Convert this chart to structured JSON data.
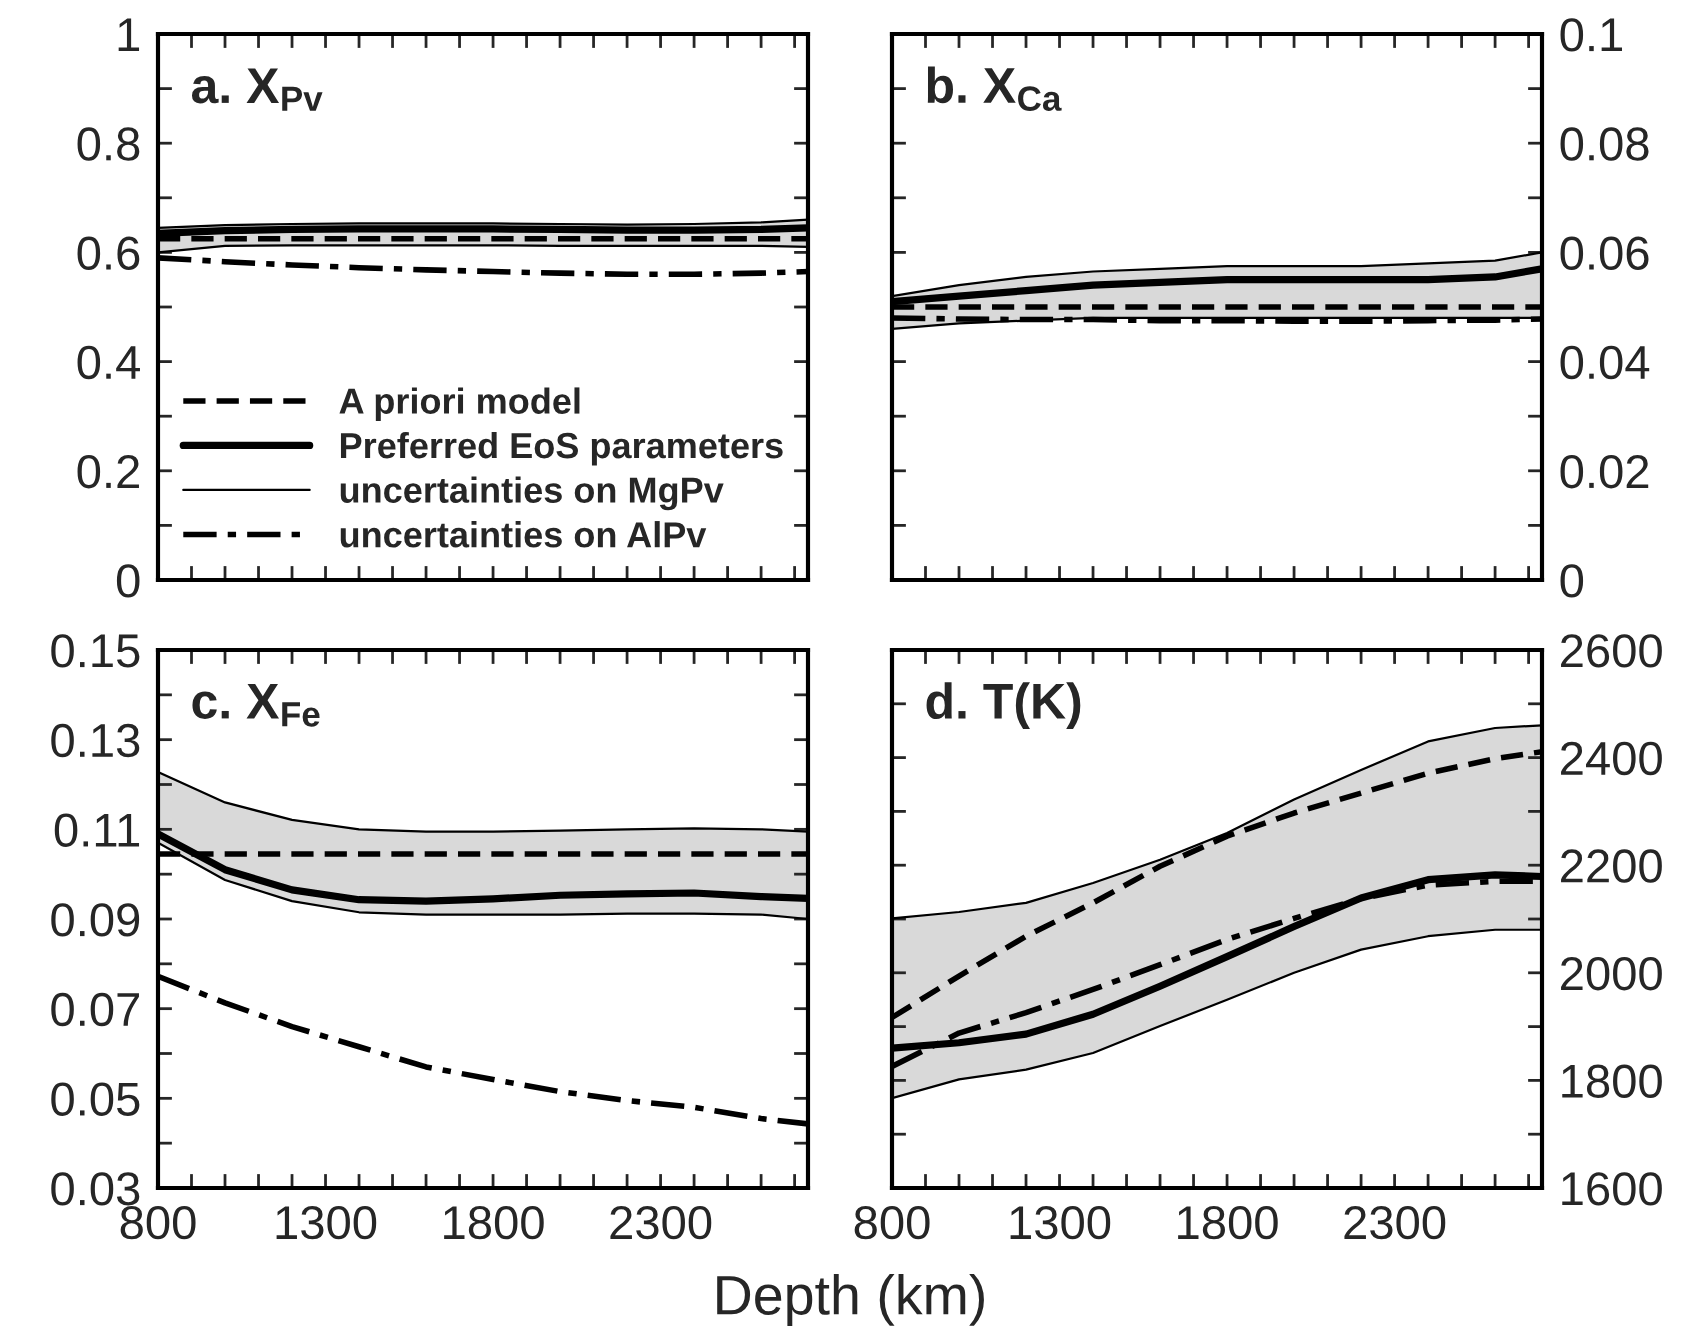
{
  "chart_data": [
    {
      "type": "line",
      "title": "a. X$_{Pv}$",
      "x": [
        800,
        1000,
        1200,
        1400,
        1600,
        1800,
        2000,
        2200,
        2400,
        2600,
        2740
      ],
      "xlim": [
        800,
        2740
      ],
      "xticks": [
        {
          "value": 800,
          "label": null
        },
        {
          "value": 900,
          "label": null
        },
        {
          "value": 1000,
          "label": null
        },
        {
          "value": 1100,
          "label": null
        },
        {
          "value": 1200,
          "label": null
        },
        {
          "value": 1300,
          "label": null
        },
        {
          "value": 1400,
          "label": null
        },
        {
          "value": 1500,
          "label": null
        },
        {
          "value": 1600,
          "label": null
        },
        {
          "value": 1700,
          "label": null
        },
        {
          "value": 1800,
          "label": null
        },
        {
          "value": 1900,
          "label": null
        },
        {
          "value": 2000,
          "label": null
        },
        {
          "value": 2100,
          "label": null
        },
        {
          "value": 2200,
          "label": null
        },
        {
          "value": 2300,
          "label": null
        },
        {
          "value": 2400,
          "label": null
        },
        {
          "value": 2500,
          "label": null
        },
        {
          "value": 2600,
          "label": null
        },
        {
          "value": 2700,
          "label": null
        }
      ],
      "ylim": [
        0,
        1
      ],
      "yticks": [
        0,
        {
          "value": 0.1,
          "label": null
        },
        0.2,
        {
          "value": 0.3,
          "label": null
        },
        0.4,
        {
          "value": 0.5,
          "label": null
        },
        0.6,
        {
          "value": 0.7,
          "label": null
        },
        0.8,
        {
          "value": 0.9,
          "label": null
        },
        1
      ],
      "tick_labels": "y",
      "grid": false,
      "legend": "bottom left",
      "series": [
        {
          "name": "A priori model",
          "color": "#000000",
          "line_style": "dashed",
          "values": [
            0.625,
            0.625,
            0.625,
            0.625,
            0.625,
            0.625,
            0.625,
            0.625,
            0.625,
            0.625,
            0.625
          ]
        },
        {
          "name": "Preferred EoS parameters",
          "color": "#000000",
          "line_style": "solid",
          "values": [
            0.635,
            0.64,
            0.642,
            0.643,
            0.643,
            0.643,
            0.642,
            0.641,
            0.641,
            0.642,
            0.645
          ],
          "lower": [
            0.6,
            0.612,
            0.613,
            0.613,
            0.613,
            0.613,
            0.612,
            0.612,
            0.612,
            0.612,
            0.61
          ],
          "upper": [
            0.645,
            0.65,
            0.652,
            0.653,
            0.653,
            0.653,
            0.652,
            0.651,
            0.652,
            0.655,
            0.66
          ]
        },
        {
          "name": "uncertainties on MgPv",
          "color": "#000000",
          "line_style": "solid",
          "values": [
            0.645,
            0.65,
            0.652,
            0.653,
            0.653,
            0.653,
            0.652,
            0.651,
            0.652,
            0.655,
            0.66
          ]
        },
        {
          "color": "#000000",
          "line_style": "solid",
          "values": [
            0.6,
            0.612,
            0.613,
            0.613,
            0.613,
            0.613,
            0.612,
            0.612,
            0.612,
            0.612,
            0.61
          ]
        },
        {
          "name": "uncertainties on AlPv",
          "color": "#000000",
          "line_style": "dashdot",
          "values": [
            0.59,
            0.583,
            0.577,
            0.572,
            0.568,
            0.565,
            0.562,
            0.56,
            0.56,
            0.562,
            0.565
          ]
        }
      ]
    },
    {
      "type": "line",
      "title": "b. X$_{Ca}$",
      "x": [
        800,
        1000,
        1200,
        1400,
        1600,
        1800,
        2000,
        2200,
        2400,
        2600,
        2740
      ],
      "xlim": [
        800,
        2740
      ],
      "xticks": [
        {
          "value": 800,
          "label": null
        },
        {
          "value": 900,
          "label": null
        },
        {
          "value": 1000,
          "label": null
        },
        {
          "value": 1100,
          "label": null
        },
        {
          "value": 1200,
          "label": null
        },
        {
          "value": 1300,
          "label": null
        },
        {
          "value": 1400,
          "label": null
        },
        {
          "value": 1500,
          "label": null
        },
        {
          "value": 1600,
          "label": null
        },
        {
          "value": 1700,
          "label": null
        },
        {
          "value": 1800,
          "label": null
        },
        {
          "value": 1900,
          "label": null
        },
        {
          "value": 2000,
          "label": null
        },
        {
          "value": 2100,
          "label": null
        },
        {
          "value": 2200,
          "label": null
        },
        {
          "value": 2300,
          "label": null
        },
        {
          "value": 2400,
          "label": null
        },
        {
          "value": 2500,
          "label": null
        },
        {
          "value": 2600,
          "label": null
        },
        {
          "value": 2700,
          "label": null
        }
      ],
      "y2lim": [
        0,
        0.1
      ],
      "y2ticks": [
        0,
        {
          "value": 0.01,
          "label": null
        },
        0.02,
        {
          "value": 0.03,
          "label": null
        },
        0.04,
        {
          "value": 0.05,
          "label": null
        },
        0.06,
        {
          "value": 0.07,
          "label": null
        },
        0.08,
        {
          "value": 0.09,
          "label": null
        },
        0.1
      ],
      "tick_labels": "y",
      "grid": false,
      "series": [
        {
          "color": "#000000",
          "axis": "y2",
          "line_style": "dashed",
          "values": [
            0.05,
            0.05,
            0.05,
            0.05,
            0.05,
            0.05,
            0.05,
            0.05,
            0.05,
            0.05,
            0.05
          ]
        },
        {
          "color": "#000000",
          "axis": "y2",
          "line_style": "solid",
          "values": [
            0.051,
            0.052,
            0.053,
            0.054,
            0.0545,
            0.055,
            0.055,
            0.055,
            0.055,
            0.0555,
            0.057
          ],
          "lower": [
            0.046,
            0.047,
            0.0475,
            0.048,
            0.048,
            0.048,
            0.048,
            0.048,
            0.048,
            0.048,
            0.048
          ],
          "upper": [
            0.052,
            0.054,
            0.0555,
            0.0565,
            0.057,
            0.0575,
            0.0575,
            0.0575,
            0.058,
            0.0585,
            0.06
          ]
        },
        {
          "color": "#000000",
          "axis": "y2",
          "line_style": "solid",
          "values": [
            0.052,
            0.054,
            0.0555,
            0.0565,
            0.057,
            0.0575,
            0.0575,
            0.0575,
            0.058,
            0.0585,
            0.06
          ]
        },
        {
          "color": "#000000",
          "axis": "y2",
          "line_style": "solid",
          "values": [
            0.046,
            0.047,
            0.0475,
            0.048,
            0.048,
            0.048,
            0.048,
            0.048,
            0.048,
            0.048,
            0.048
          ]
        },
        {
          "color": "#000000",
          "axis": "y2",
          "line_style": "dashdot",
          "values": [
            0.048,
            0.0478,
            0.0477,
            0.0477,
            0.0475,
            0.0475,
            0.0474,
            0.0474,
            0.0475,
            0.0476,
            0.0478
          ]
        }
      ]
    },
    {
      "type": "line",
      "title": "c. X$_{Fe}$",
      "xlabel": "Depth (km)",
      "x": [
        800,
        1000,
        1200,
        1400,
        1600,
        1800,
        2000,
        2200,
        2400,
        2600,
        2740
      ],
      "xlim": [
        800,
        2740
      ],
      "xticks": [
        800,
        {
          "value": 900,
          "label": null
        },
        {
          "value": 1000,
          "label": null
        },
        {
          "value": 1100,
          "label": null
        },
        {
          "value": 1200,
          "label": null
        },
        1300,
        {
          "value": 1400,
          "label": null
        },
        {
          "value": 1500,
          "label": null
        },
        {
          "value": 1600,
          "label": null
        },
        {
          "value": 1700,
          "label": null
        },
        1800,
        {
          "value": 1900,
          "label": null
        },
        {
          "value": 2000,
          "label": null
        },
        {
          "value": 2100,
          "label": null
        },
        {
          "value": 2200,
          "label": null
        },
        2300,
        {
          "value": 2400,
          "label": null
        },
        {
          "value": 2500,
          "label": null
        },
        {
          "value": 2600,
          "label": null
        },
        {
          "value": 2700,
          "label": null
        }
      ],
      "ylim": [
        0.03,
        0.15
      ],
      "yticks": [
        0.03,
        {
          "value": 0.04,
          "label": null
        },
        0.05,
        {
          "value": 0.06,
          "label": null
        },
        0.07,
        {
          "value": 0.08,
          "label": null
        },
        0.09,
        {
          "value": 0.1,
          "label": null
        },
        0.11,
        {
          "value": 0.12,
          "label": null
        },
        0.13,
        {
          "value": 0.14,
          "label": null
        },
        0.15
      ],
      "grid": false,
      "series": [
        {
          "color": "#000000",
          "line_style": "dashed",
          "values": [
            0.1045,
            0.1045,
            0.1045,
            0.1045,
            0.1045,
            0.1045,
            0.1045,
            0.1045,
            0.1045,
            0.1045,
            0.1045
          ]
        },
        {
          "color": "#000000",
          "line_style": "solid",
          "values": [
            0.109,
            0.101,
            0.0965,
            0.0943,
            0.094,
            0.0945,
            0.0953,
            0.0956,
            0.0958,
            0.095,
            0.0946
          ],
          "lower": [
            0.107,
            0.0987,
            0.094,
            0.0915,
            0.091,
            0.091,
            0.091,
            0.0912,
            0.0912,
            0.091,
            0.09
          ],
          "upper": [
            0.1228,
            0.116,
            0.1121,
            0.11,
            0.1095,
            0.1095,
            0.1097,
            0.11,
            0.1102,
            0.11,
            0.1095
          ]
        },
        {
          "color": "#000000",
          "line_style": "solid",
          "values": [
            0.1228,
            0.116,
            0.1121,
            0.11,
            0.1095,
            0.1095,
            0.1097,
            0.11,
            0.1102,
            0.11,
            0.1095
          ]
        },
        {
          "color": "#000000",
          "line_style": "solid",
          "values": [
            0.107,
            0.0987,
            0.094,
            0.0915,
            0.091,
            0.091,
            0.091,
            0.0912,
            0.0912,
            0.091,
            0.09
          ]
        },
        {
          "color": "#000000",
          "line_style": "dashdot",
          "values": [
            0.0772,
            0.0713,
            0.066,
            0.0615,
            0.057,
            0.0542,
            0.0515,
            0.0495,
            0.048,
            0.0455,
            0.0443
          ]
        }
      ]
    },
    {
      "type": "line",
      "title": "d. T(K)",
      "x": [
        800,
        1000,
        1200,
        1400,
        1600,
        1800,
        2000,
        2200,
        2400,
        2600,
        2740
      ],
      "xlim": [
        800,
        2740
      ],
      "xticks": [
        800,
        {
          "value": 900,
          "label": null
        },
        {
          "value": 1000,
          "label": null
        },
        {
          "value": 1100,
          "label": null
        },
        {
          "value": 1200,
          "label": null
        },
        1300,
        {
          "value": 1400,
          "label": null
        },
        {
          "value": 1500,
          "label": null
        },
        {
          "value": 1600,
          "label": null
        },
        {
          "value": 1700,
          "label": null
        },
        1800,
        {
          "value": 1900,
          "label": null
        },
        {
          "value": 2000,
          "label": null
        },
        {
          "value": 2100,
          "label": null
        },
        {
          "value": 2200,
          "label": null
        },
        2300,
        {
          "value": 2400,
          "label": null
        },
        {
          "value": 2500,
          "label": null
        },
        {
          "value": 2600,
          "label": null
        },
        {
          "value": 2700,
          "label": null
        }
      ],
      "y2lim": [
        1600,
        2600
      ],
      "y2ticks": [
        1600,
        {
          "value": 1700,
          "label": null
        },
        1800,
        {
          "value": 1900,
          "label": null
        },
        2000,
        {
          "value": 2100,
          "label": null
        },
        2200,
        {
          "value": 2300,
          "label": null
        },
        2400,
        {
          "value": 2500,
          "label": null
        },
        2600
      ],
      "grid": false,
      "series": [
        {
          "color": "#000000",
          "axis": "y2",
          "line_style": "dashed",
          "values": [
            1917,
            1994,
            2068,
            2130,
            2198,
            2254,
            2297,
            2334,
            2371,
            2398,
            2411
          ]
        },
        {
          "color": "#000000",
          "axis": "y2",
          "line_style": "solid",
          "values": [
            1860,
            1870,
            1886,
            1923,
            1975,
            2030,
            2086,
            2139,
            2173,
            2182,
            2179
          ],
          "lower": [
            1767,
            1802,
            1820,
            1851,
            1901,
            1950,
            2000,
            2043,
            2068,
            2080,
            2080
          ],
          "upper": [
            2101,
            2113,
            2130,
            2167,
            2210,
            2260,
            2322,
            2377,
            2430,
            2455,
            2460
          ]
        },
        {
          "color": "#000000",
          "axis": "y2",
          "line_style": "solid",
          "values": [
            2101,
            2113,
            2130,
            2167,
            2210,
            2260,
            2322,
            2377,
            2430,
            2455,
            2460
          ]
        },
        {
          "color": "#000000",
          "axis": "y2",
          "line_style": "solid",
          "values": [
            1767,
            1802,
            1820,
            1851,
            1901,
            1950,
            2000,
            2043,
            2068,
            2080,
            2080
          ]
        },
        {
          "color": "#000000",
          "axis": "y2",
          "line_style": "dashdot",
          "values": [
            1826,
            1888,
            1926,
            1969,
            2015,
            2062,
            2101,
            2138,
            2163,
            2170,
            2170
          ]
        }
      ]
    }
  ]
}
